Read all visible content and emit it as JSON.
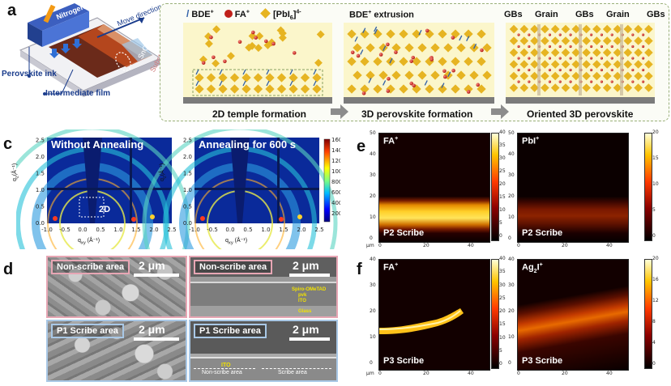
{
  "colors": {
    "panel_b_bg": "#f3f8e6",
    "panel_b_border": "#9ab07a",
    "iodide_gold": "#e6b422",
    "fa_red": "#c0201a",
    "bde_blue": "#2f5fa8",
    "pink_frame": "#e7a6b4",
    "blue_frame": "#a9c8e6",
    "text_yellow": "#f2e200"
  },
  "panels": {
    "a": "a",
    "b": "b",
    "c": "c",
    "d": "d",
    "e": "e",
    "f": "f"
  },
  "panel_a": {
    "nitrogen_knife": "Nitrogen knife",
    "move_direction": "Move direction",
    "sno2": "SnO",
    "sno2_sub": "2",
    "substrate": "Substrate",
    "perovskite_ink": "Perovskite ink",
    "intermediate_film": "Intermediate film"
  },
  "panel_b": {
    "legend_bde": "BDE",
    "legend_bde_sup": "+",
    "legend_fa": "FA",
    "legend_fa_sup": "+",
    "legend_pbi_pre": "[PbI",
    "legend_pbi_sub": "6",
    "legend_pbi_post": "]",
    "legend_pbi_sup": "4-",
    "extrusion_pre": "BDE",
    "extrusion_sup": "+",
    "extrusion_post": " extrusion",
    "gbs_labels": [
      "GBs",
      "Grain",
      "GBs",
      "Grain",
      "GBs"
    ],
    "step1": "2D temple formation",
    "step2": "3D perovskite formation",
    "step3": "Oriented 3D perovskite"
  },
  "panel_c": {
    "left_title": "Without Annealing",
    "right_title": "Annealing for 600 s",
    "tag_2d": "2D",
    "y_label": "q",
    "y_label_sub": "z",
    "y_unit": "(Å⁻¹)",
    "x_label": "q",
    "x_label_sub": "xy",
    "x_unit": " (Å⁻¹)",
    "x_ticks": [
      "-1.0",
      "-0.5",
      "0.0",
      "0.5",
      "1.0",
      "1.5",
      "2.0",
      "2.5"
    ],
    "y_ticks": [
      "0.0",
      "0.5",
      "1.0",
      "1.5",
      "2.0",
      "2.5"
    ],
    "colorbar_ticks": [
      "1600",
      "1400",
      "1200",
      "1000",
      "800",
      "600",
      "400",
      "200"
    ]
  },
  "panel_d": {
    "tl_tag": "Non-scribe area",
    "tr_tag": "Non-scribe area",
    "bl_tag": "P1 Scribe area",
    "br_tag": "P1 Scribe area",
    "scale": "2 μm",
    "layers": [
      "Spiro-OMeTAD",
      "pvk",
      "ITO",
      "Glass"
    ],
    "ito_label": "ITO",
    "non_scribe_bottom": "Non-scribe area",
    "scribe_bottom": "Scribe area"
  },
  "panel_e": {
    "left_tag": "FA",
    "left_sup": "+",
    "right_tag": "PbI",
    "right_sup": "+",
    "scribe": "P2 Scribe",
    "left_cbar": [
      "40",
      "35",
      "30",
      "25",
      "20",
      "15",
      "10",
      "5",
      "0"
    ],
    "right_cbar": [
      "20",
      "15",
      "10",
      "5",
      "0"
    ],
    "y_ticks": [
      "50",
      "40",
      "30",
      "20",
      "10",
      "0"
    ],
    "x_ticks": [
      "0",
      "20",
      "40"
    ],
    "unit": "μm"
  },
  "panel_f": {
    "left_tag": "FA",
    "left_sup": "+",
    "right_tag_pre": "Ag",
    "right_sub": "2",
    "right_tag_post": "I",
    "right_sup": "+",
    "scribe": "P3 Scribe",
    "left_cbar": [
      "40",
      "35",
      "30",
      "25",
      "20",
      "15",
      "10",
      "5",
      "0"
    ],
    "right_cbar": [
      "20",
      "16",
      "12",
      "8",
      "4",
      "0"
    ],
    "y_ticks": [
      "40",
      "30",
      "20",
      "10",
      "0"
    ],
    "x_ticks": [
      "0",
      "20",
      "40"
    ],
    "unit": "μm"
  }
}
